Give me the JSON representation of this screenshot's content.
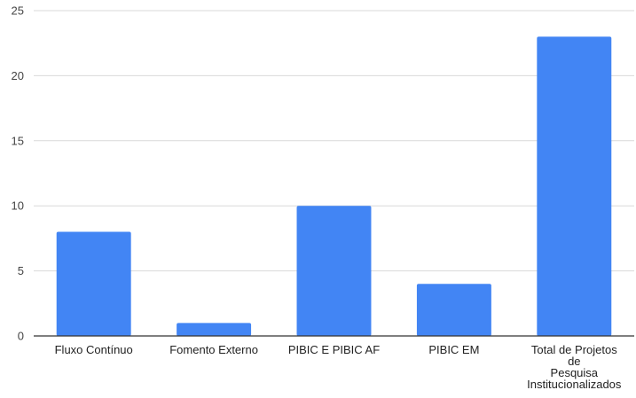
{
  "chart_data": {
    "type": "bar",
    "categories": [
      "Fluxo Contínuo",
      "Fomento Externo",
      "PIBIC E PIBIC AF",
      "PIBIC EM",
      "Total de Projetos de Pesquisa Institucionalizados"
    ],
    "category_label_lines": [
      [
        "Fluxo Contínuo"
      ],
      [
        "Fomento Externo"
      ],
      [
        "PIBIC E PIBIC AF"
      ],
      [
        "PIBIC EM"
      ],
      [
        "Total de Projetos",
        "de",
        "Pesquisa",
        "Institucionalizados"
      ]
    ],
    "values": [
      8,
      1,
      10,
      4,
      23
    ],
    "ylim": [
      0,
      25
    ],
    "yticks": [
      0,
      5,
      10,
      15,
      20,
      25
    ],
    "title": "",
    "xlabel": "",
    "ylabel": "",
    "grid": true,
    "legend": "none",
    "colors": {
      "bar": "#4285f4"
    }
  }
}
